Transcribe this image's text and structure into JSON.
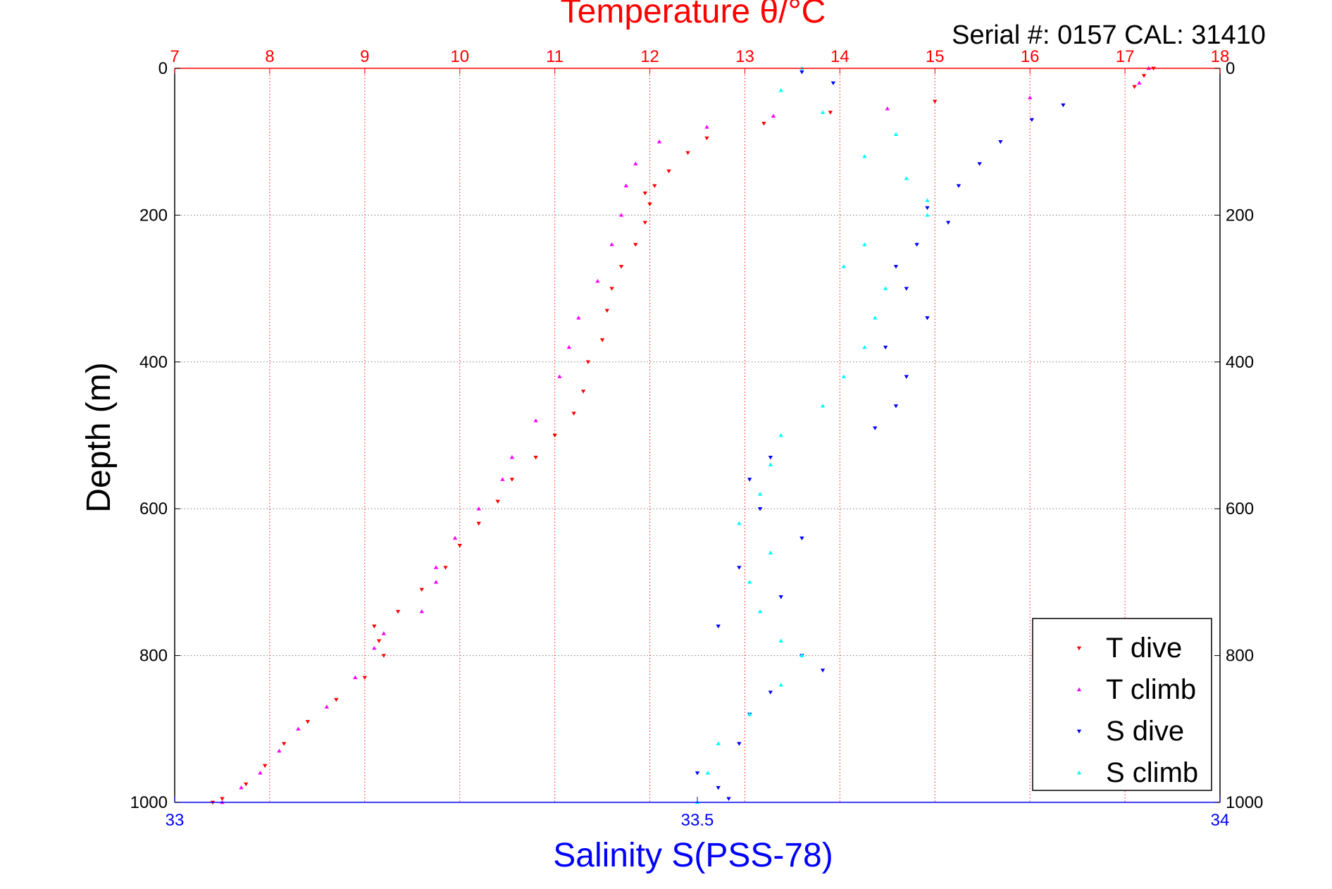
{
  "colors": {
    "temperature_axis": "#ff0000",
    "salinity_axis": "#0000ff",
    "t_dive": "#ff0000",
    "t_climb": "#ff00ff",
    "s_dive": "#0000ff",
    "s_climb": "#00ffff",
    "grid": "#7f7f7f",
    "frame": "#000000"
  },
  "chart_data": {
    "type": "scatter",
    "title": "Temperature θ/°C",
    "subtitle": "Serial #: 0157  CAL: 31410",
    "ylabel": "Depth (m)",
    "xlabel": "Salinity S(PSS-78)",
    "y_axis": {
      "range": [
        0,
        1000
      ],
      "reversed": true,
      "ticks": [
        0,
        200,
        400,
        600,
        800,
        1000
      ],
      "tick_labels": [
        "0",
        "200",
        "400",
        "600",
        "800",
        "1000"
      ]
    },
    "x_top_axis": {
      "quantity": "temperature",
      "range": [
        7,
        18
      ],
      "ticks": [
        7,
        8,
        9,
        10,
        11,
        12,
        13,
        14,
        15,
        16,
        17,
        18
      ],
      "tick_labels": [
        "7",
        "8",
        "9",
        "10",
        "11",
        "12",
        "13",
        "14",
        "15",
        "16",
        "17",
        "18"
      ]
    },
    "x_bottom_axis": {
      "quantity": "salinity",
      "range": [
        33,
        34
      ],
      "ticks": [
        33,
        33.5,
        34
      ],
      "tick_labels": [
        "33",
        "33.5",
        "34"
      ]
    },
    "grid": true,
    "legend": {
      "placement": "bottom-right",
      "entries": [
        "T dive",
        "T climb",
        "S dive",
        "S climb"
      ]
    },
    "series": [
      {
        "name": "T dive",
        "axis": "temperature",
        "marker": "triangle-down",
        "points": [
          [
            17.3,
            0
          ],
          [
            17.2,
            10
          ],
          [
            17.1,
            25
          ],
          [
            15.0,
            45
          ],
          [
            13.9,
            60
          ],
          [
            13.2,
            75
          ],
          [
            12.6,
            95
          ],
          [
            12.4,
            115
          ],
          [
            12.2,
            140
          ],
          [
            12.05,
            160
          ],
          [
            11.95,
            170
          ],
          [
            12.0,
            185
          ],
          [
            11.95,
            210
          ],
          [
            11.85,
            240
          ],
          [
            11.7,
            270
          ],
          [
            11.6,
            300
          ],
          [
            11.55,
            330
          ],
          [
            11.5,
            370
          ],
          [
            11.35,
            400
          ],
          [
            11.3,
            440
          ],
          [
            11.2,
            470
          ],
          [
            11.0,
            500
          ],
          [
            10.8,
            530
          ],
          [
            10.55,
            560
          ],
          [
            10.4,
            590
          ],
          [
            10.2,
            620
          ],
          [
            10.0,
            650
          ],
          [
            9.85,
            680
          ],
          [
            9.6,
            710
          ],
          [
            9.35,
            740
          ],
          [
            9.1,
            760
          ],
          [
            9.15,
            780
          ],
          [
            9.2,
            800
          ],
          [
            9.0,
            830
          ],
          [
            8.7,
            860
          ],
          [
            8.4,
            890
          ],
          [
            8.15,
            920
          ],
          [
            7.95,
            950
          ],
          [
            7.75,
            975
          ],
          [
            7.5,
            995
          ],
          [
            7.4,
            1000
          ]
        ]
      },
      {
        "name": "T climb",
        "axis": "temperature",
        "marker": "triangle-up",
        "points": [
          [
            17.25,
            0
          ],
          [
            17.15,
            20
          ],
          [
            16.0,
            40
          ],
          [
            14.5,
            55
          ],
          [
            13.3,
            65
          ],
          [
            12.6,
            80
          ],
          [
            12.1,
            100
          ],
          [
            11.85,
            130
          ],
          [
            11.75,
            160
          ],
          [
            11.7,
            200
          ],
          [
            11.6,
            240
          ],
          [
            11.45,
            290
          ],
          [
            11.25,
            340
          ],
          [
            11.15,
            380
          ],
          [
            11.05,
            420
          ],
          [
            10.8,
            480
          ],
          [
            10.55,
            530
          ],
          [
            10.45,
            560
          ],
          [
            10.2,
            600
          ],
          [
            9.95,
            640
          ],
          [
            9.75,
            680
          ],
          [
            9.75,
            700
          ],
          [
            9.6,
            740
          ],
          [
            9.2,
            770
          ],
          [
            9.1,
            790
          ],
          [
            8.9,
            830
          ],
          [
            8.6,
            870
          ],
          [
            8.3,
            900
          ],
          [
            8.1,
            930
          ],
          [
            7.9,
            960
          ],
          [
            7.7,
            980
          ],
          [
            7.5,
            1000
          ]
        ]
      },
      {
        "name": "S dive",
        "axis": "salinity",
        "marker": "triangle-down",
        "points": [
          [
            33.6,
            5
          ],
          [
            33.63,
            20
          ],
          [
            33.85,
            50
          ],
          [
            33.82,
            70
          ],
          [
            33.79,
            100
          ],
          [
            33.77,
            130
          ],
          [
            33.75,
            160
          ],
          [
            33.72,
            190
          ],
          [
            33.74,
            210
          ],
          [
            33.71,
            240
          ],
          [
            33.69,
            270
          ],
          [
            33.7,
            300
          ],
          [
            33.72,
            340
          ],
          [
            33.68,
            380
          ],
          [
            33.7,
            420
          ],
          [
            33.69,
            460
          ],
          [
            33.67,
            490
          ],
          [
            33.57,
            530
          ],
          [
            33.55,
            560
          ],
          [
            33.56,
            600
          ],
          [
            33.6,
            640
          ],
          [
            33.54,
            680
          ],
          [
            33.58,
            720
          ],
          [
            33.52,
            760
          ],
          [
            33.6,
            800
          ],
          [
            33.62,
            820
          ],
          [
            33.57,
            850
          ],
          [
            33.55,
            880
          ],
          [
            33.54,
            920
          ],
          [
            33.5,
            960
          ],
          [
            33.52,
            980
          ],
          [
            33.53,
            995
          ]
        ]
      },
      {
        "name": "S climb",
        "axis": "salinity",
        "marker": "triangle-up",
        "points": [
          [
            33.6,
            0
          ],
          [
            33.58,
            30
          ],
          [
            33.62,
            60
          ],
          [
            33.69,
            90
          ],
          [
            33.66,
            120
          ],
          [
            33.7,
            150
          ],
          [
            33.72,
            180
          ],
          [
            33.72,
            200
          ],
          [
            33.66,
            240
          ],
          [
            33.64,
            270
          ],
          [
            33.68,
            300
          ],
          [
            33.67,
            340
          ],
          [
            33.66,
            380
          ],
          [
            33.64,
            420
          ],
          [
            33.62,
            460
          ],
          [
            33.58,
            500
          ],
          [
            33.57,
            540
          ],
          [
            33.56,
            580
          ],
          [
            33.54,
            620
          ],
          [
            33.57,
            660
          ],
          [
            33.55,
            700
          ],
          [
            33.56,
            740
          ],
          [
            33.58,
            780
          ],
          [
            33.6,
            800
          ],
          [
            33.58,
            840
          ],
          [
            33.55,
            880
          ],
          [
            33.52,
            920
          ],
          [
            33.51,
            960
          ],
          [
            33.5,
            1000
          ]
        ]
      }
    ]
  }
}
